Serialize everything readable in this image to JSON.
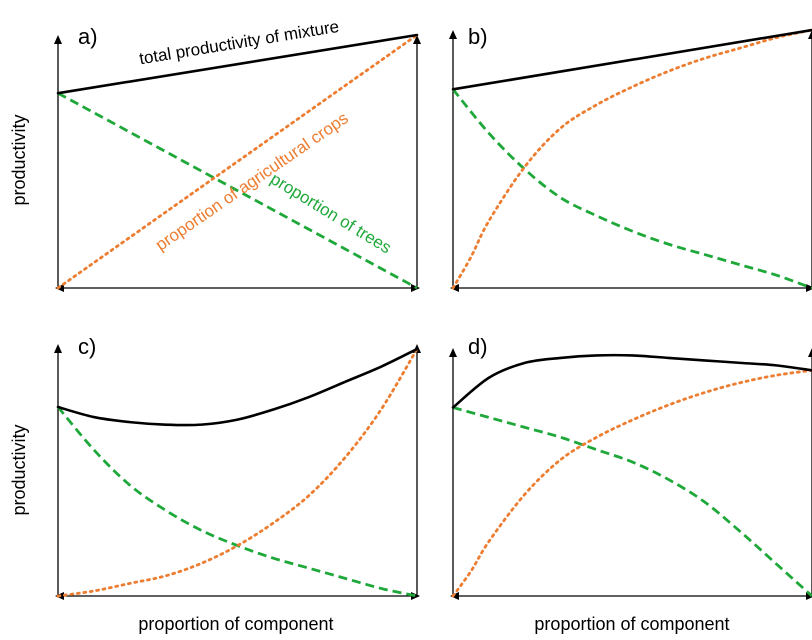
{
  "colors": {
    "total": "#000000",
    "crops": "#ED7D31",
    "trees": "#1FA83A",
    "axis": "#000000"
  },
  "icons": [
    "arrow-up-icon",
    "arrow-left-icon",
    "arrow-right-icon"
  ],
  "chart_data": [
    {
      "type": "line",
      "panel": "a)",
      "xlabel": "",
      "ylabel": "productivity",
      "xlim": [
        0,
        1
      ],
      "ylim": [
        0,
        1
      ],
      "grid": false,
      "legend": "none",
      "annotations": [
        {
          "text": "total productivity of mixture",
          "series": "total"
        },
        {
          "text": "proportion of agricultural crops",
          "series": "crops"
        },
        {
          "text": "proportion of trees",
          "series": "trees"
        }
      ],
      "series": [
        {
          "key": "total",
          "style": "solid",
          "x": [
            0,
            1
          ],
          "y": [
            0.77,
            1.0
          ]
        },
        {
          "key": "crops",
          "style": "dotted",
          "x": [
            0,
            1
          ],
          "y": [
            0.0,
            1.0
          ]
        },
        {
          "key": "trees",
          "style": "dashed",
          "x": [
            0,
            1
          ],
          "y": [
            0.77,
            0.0
          ]
        }
      ]
    },
    {
      "type": "line",
      "panel": "b)",
      "xlabel": "",
      "ylabel": "",
      "xlim": [
        0,
        1
      ],
      "ylim": [
        0,
        1
      ],
      "grid": false,
      "legend": "none",
      "series": [
        {
          "key": "total",
          "style": "solid",
          "x": [
            0,
            1
          ],
          "y": [
            0.77,
            1.0
          ]
        },
        {
          "key": "crops",
          "style": "dotted",
          "x": [
            0,
            0.05,
            0.1,
            0.2,
            0.3,
            0.4,
            0.5,
            0.6,
            0.7,
            0.8,
            0.9,
            1.0
          ],
          "y": [
            0.0,
            0.12,
            0.26,
            0.47,
            0.62,
            0.71,
            0.78,
            0.84,
            0.89,
            0.93,
            0.97,
            1.0
          ]
        },
        {
          "key": "trees",
          "style": "dashed",
          "x": [
            0,
            0.1,
            0.2,
            0.3,
            0.4,
            0.5,
            0.6,
            0.7,
            0.8,
            0.9,
            1.0
          ],
          "y": [
            0.77,
            0.6,
            0.46,
            0.35,
            0.28,
            0.22,
            0.17,
            0.13,
            0.09,
            0.05,
            0.0
          ]
        }
      ]
    },
    {
      "type": "line",
      "panel": "c)",
      "xlabel": "proportion of component",
      "ylabel": "productivity",
      "xlim": [
        0,
        1
      ],
      "ylim": [
        0,
        1
      ],
      "grid": false,
      "legend": "none",
      "series": [
        {
          "key": "total",
          "style": "solid",
          "x": [
            0,
            0.1,
            0.2,
            0.3,
            0.4,
            0.5,
            0.6,
            0.7,
            0.8,
            0.9,
            1.0
          ],
          "y": [
            0.75,
            0.71,
            0.69,
            0.68,
            0.68,
            0.7,
            0.74,
            0.79,
            0.85,
            0.91,
            0.98
          ]
        },
        {
          "key": "crops",
          "style": "dotted",
          "x": [
            0,
            0.1,
            0.2,
            0.3,
            0.4,
            0.5,
            0.6,
            0.7,
            0.8,
            0.9,
            1.0
          ],
          "y": [
            0.0,
            0.02,
            0.05,
            0.08,
            0.13,
            0.2,
            0.29,
            0.4,
            0.55,
            0.74,
            0.98
          ]
        },
        {
          "key": "trees",
          "style": "dashed",
          "x": [
            0,
            0.1,
            0.2,
            0.3,
            0.4,
            0.5,
            0.6,
            0.7,
            0.8,
            0.9,
            1.0
          ],
          "y": [
            0.75,
            0.58,
            0.44,
            0.34,
            0.26,
            0.2,
            0.15,
            0.11,
            0.07,
            0.03,
            0.0
          ]
        }
      ]
    },
    {
      "type": "line",
      "panel": "d)",
      "xlabel": "proportion of component",
      "ylabel": "",
      "xlim": [
        0,
        1
      ],
      "ylim": [
        0,
        1
      ],
      "grid": false,
      "legend": "none",
      "series": [
        {
          "key": "total",
          "style": "solid",
          "x": [
            0,
            0.1,
            0.2,
            0.3,
            0.4,
            0.5,
            0.6,
            0.7,
            0.8,
            0.9,
            1.0
          ],
          "y": [
            0.76,
            0.88,
            0.94,
            0.96,
            0.97,
            0.97,
            0.96,
            0.95,
            0.94,
            0.93,
            0.91
          ]
        },
        {
          "key": "crops",
          "style": "dotted",
          "x": [
            0,
            0.05,
            0.1,
            0.2,
            0.3,
            0.4,
            0.5,
            0.6,
            0.7,
            0.8,
            0.9,
            1.0
          ],
          "y": [
            0.0,
            0.1,
            0.22,
            0.41,
            0.55,
            0.64,
            0.71,
            0.77,
            0.82,
            0.86,
            0.89,
            0.91
          ]
        },
        {
          "key": "trees",
          "style": "dashed",
          "x": [
            0,
            0.1,
            0.2,
            0.3,
            0.4,
            0.5,
            0.6,
            0.7,
            0.8,
            0.9,
            1.0
          ],
          "y": [
            0.76,
            0.72,
            0.68,
            0.64,
            0.59,
            0.54,
            0.47,
            0.38,
            0.26,
            0.13,
            0.0
          ]
        }
      ]
    }
  ]
}
